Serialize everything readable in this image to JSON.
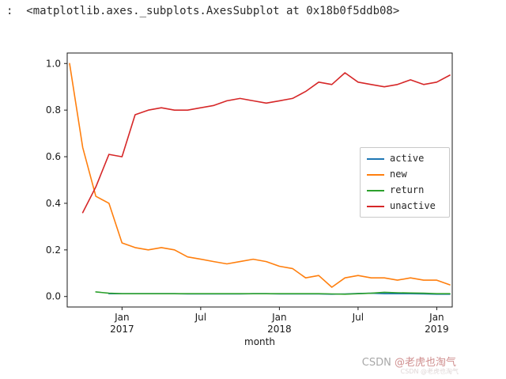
{
  "page": {
    "output_text": ":  <matplotlib.axes._subplots.AxesSubplot at 0x18b0f5ddb08>"
  },
  "watermark": {
    "prefix": "CSDN ",
    "name": "@老虎也淘气",
    "subtext": "CSDN @老虎也淘气",
    "prefix_color": "#a8a8a8",
    "name_color": "#cf8e8e"
  },
  "chart_data": {
    "type": "line",
    "title": "",
    "xlabel": "month",
    "ylabel": "",
    "ylim": [
      -0.045,
      1.045
    ],
    "grid": false,
    "legend_position": "center right",
    "y_ticks": [
      "0.0",
      "0.2",
      "0.4",
      "0.6",
      "0.8",
      "1.0"
    ],
    "x": [
      "2016-09",
      "2016-10",
      "2016-11",
      "2016-12",
      "2017-01",
      "2017-02",
      "2017-03",
      "2017-04",
      "2017-05",
      "2017-06",
      "2017-07",
      "2017-08",
      "2017-09",
      "2017-10",
      "2017-11",
      "2017-12",
      "2018-01",
      "2018-02",
      "2018-03",
      "2018-04",
      "2018-05",
      "2018-06",
      "2018-07",
      "2018-08",
      "2018-09",
      "2018-10",
      "2018-11",
      "2018-12",
      "2019-01",
      "2019-02"
    ],
    "x_ticks": [
      {
        "index": 4,
        "label": "Jan",
        "sublabel": "2017"
      },
      {
        "index": 10,
        "label": "Jul",
        "sublabel": ""
      },
      {
        "index": 16,
        "label": "Jan",
        "sublabel": "2018"
      },
      {
        "index": 22,
        "label": "Jul",
        "sublabel": ""
      },
      {
        "index": 28,
        "label": "Jan",
        "sublabel": "2019"
      }
    ],
    "series": [
      {
        "name": "active",
        "color": "#1f77b4",
        "values": [
          null,
          null,
          null,
          0.012,
          0.012,
          0.012,
          0.012,
          0.012,
          0.012,
          0.011,
          0.011,
          0.011,
          0.011,
          0.011,
          0.012,
          0.012,
          0.011,
          0.011,
          0.011,
          0.011,
          0.01,
          0.011,
          0.013,
          0.014,
          0.012,
          0.012,
          0.012,
          0.011,
          0.01,
          0.01
        ]
      },
      {
        "name": "new",
        "color": "#ff7f0e",
        "values": [
          1.0,
          0.64,
          0.43,
          0.4,
          0.23,
          0.21,
          0.2,
          0.21,
          0.2,
          0.17,
          0.16,
          0.15,
          0.14,
          0.15,
          0.16,
          0.15,
          0.13,
          0.12,
          0.08,
          0.09,
          0.04,
          0.08,
          0.09,
          0.08,
          0.08,
          0.07,
          0.08,
          0.07,
          0.07,
          0.05
        ]
      },
      {
        "name": "return",
        "color": "#2ca02c",
        "values": [
          null,
          null,
          0.02,
          0.014,
          0.012,
          0.012,
          0.012,
          0.012,
          0.012,
          0.012,
          0.012,
          0.012,
          0.012,
          0.012,
          0.012,
          0.012,
          0.012,
          0.012,
          0.012,
          0.012,
          0.011,
          0.01,
          0.012,
          0.014,
          0.018,
          0.016,
          0.015,
          0.014,
          0.012,
          0.012
        ]
      },
      {
        "name": "unactive",
        "color": "#d62728",
        "values": [
          null,
          0.36,
          0.47,
          0.61,
          0.6,
          0.78,
          0.8,
          0.81,
          0.8,
          0.8,
          0.81,
          0.82,
          0.84,
          0.85,
          0.84,
          0.83,
          0.84,
          0.85,
          0.88,
          0.92,
          0.91,
          0.96,
          0.92,
          0.91,
          0.9,
          0.91,
          0.93,
          0.91,
          0.92,
          0.95
        ]
      }
    ]
  }
}
